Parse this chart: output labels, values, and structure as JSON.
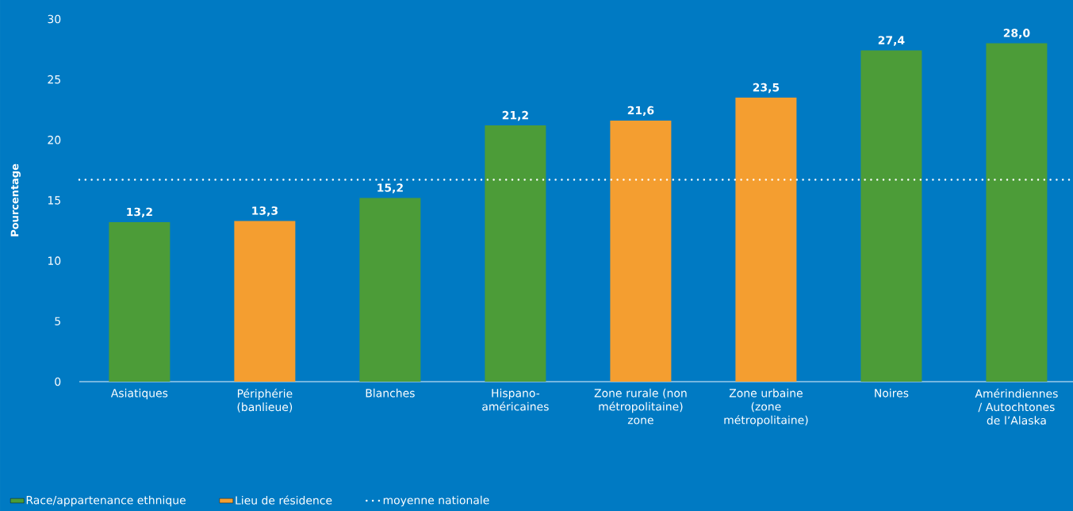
{
  "chart_data": {
    "type": "bar",
    "ylabel": "Pourcentage",
    "categories": [
      "Asiatiques",
      "Périphérie (banlieue)",
      "Blanches",
      "Hispano-américaines",
      "Zone rurale (non métropolitaine) zone",
      "Zone urbaine (zone métropolitaine)",
      "Noires",
      "Amérindiennes / Autochtones de l’Alaska"
    ],
    "series": [
      {
        "name": "Race/appartenance ethnique",
        "color": "#4c9c38",
        "values": [
          13.2,
          null,
          15.2,
          21.2,
          null,
          null,
          27.4,
          28.0
        ],
        "value_labels": [
          "13,2",
          null,
          "15,2",
          "21,2",
          null,
          null,
          "27,4",
          "28,0"
        ]
      },
      {
        "name": "Lieu de résidence",
        "color": "#f49e30",
        "values": [
          null,
          13.3,
          null,
          null,
          21.6,
          23.5,
          null,
          null
        ],
        "value_labels": [
          null,
          "13,3",
          null,
          null,
          "21,6",
          "23,5",
          null,
          null
        ]
      }
    ],
    "ylim": [
      0,
      30
    ],
    "yticks": [
      0,
      5,
      10,
      15,
      20,
      25,
      30
    ],
    "ref_lines": [
      {
        "axis": "y",
        "value": 16.7,
        "label": "moyenne nationale",
        "color": "#ffffff",
        "line_style": "dotted"
      }
    ],
    "legend": "bottom left"
  }
}
